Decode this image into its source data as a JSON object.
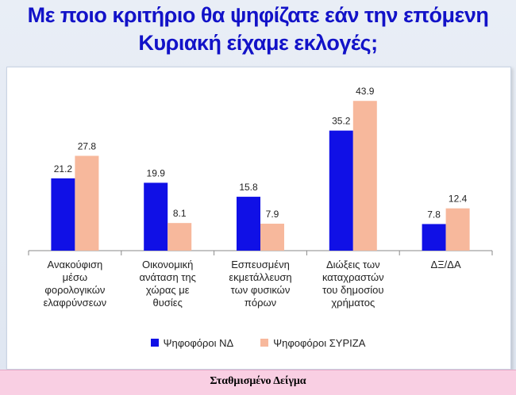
{
  "title": {
    "line1": "Με ποιο κριτήριο θα ψηφίζατε εάν την επόμενη",
    "line2": "Κυριακή είχαμε εκλογές;"
  },
  "footer": {
    "label": "Σταθμισμένο Δείγμα"
  },
  "chart_data": {
    "type": "bar",
    "title": "Με ποιο κριτήριο θα ψηφίζατε εάν την επόμενη Κυριακή είχαμε εκλογές;",
    "categories": [
      [
        "Ανακούφιση",
        "μέσω",
        "φορολογικών",
        "ελαφρύνσεων"
      ],
      [
        "Οικονομική",
        "ανάταση της",
        "χώρας με",
        "θυσίες"
      ],
      [
        "Εσπευσμένη",
        "εκμετάλλευση",
        "των φυσικών",
        "πόρων"
      ],
      [
        "Διώξεις των",
        "καταχραστών",
        "του δημοσίου",
        "χρήματος"
      ],
      [
        "ΔΞ/ΔΑ"
      ]
    ],
    "series": [
      {
        "name": "Ψηφοφόροι ΝΔ",
        "color": "#1010e6",
        "values": [
          21.2,
          19.9,
          15.8,
          35.2,
          7.8
        ]
      },
      {
        "name": "Ψηφοφόροι ΣΥΡΙΖΑ",
        "color": "#f7b89c",
        "values": [
          27.8,
          8.1,
          7.9,
          43.9,
          12.4
        ]
      }
    ],
    "ylim": [
      0,
      50
    ],
    "grid": false,
    "legend": "bottom",
    "data_labels": true
  }
}
